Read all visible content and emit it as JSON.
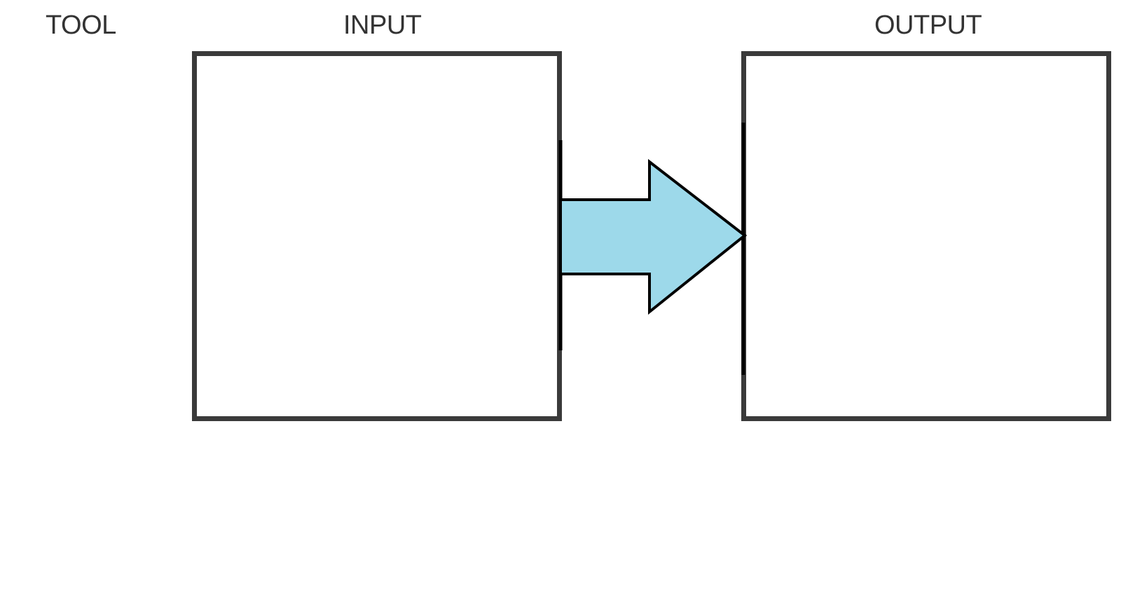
{
  "diagram": {
    "labels": {
      "tool": "TOOL",
      "input": "INPUT",
      "output": "OUTPUT"
    },
    "colors": {
      "box_border": "#3a3a3a",
      "label_text": "#333333",
      "arrow_fill": "#9dd9ea",
      "arrow_stroke": "#000000"
    },
    "arrow": {
      "direction": "right",
      "from": "input",
      "to": "output"
    }
  }
}
